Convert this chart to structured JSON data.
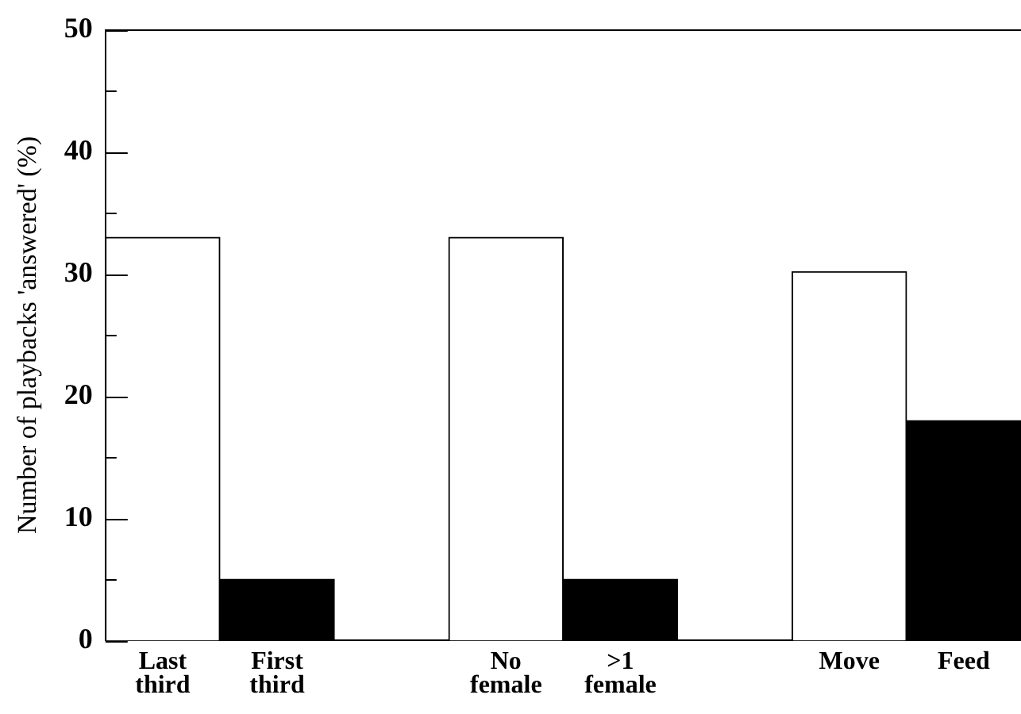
{
  "chart_data": {
    "type": "bar",
    "ylabel": "Number of playbacks 'answered' (%)",
    "categories": [
      "Last third",
      "First third",
      null,
      "No female",
      ">1 female",
      null,
      "Move",
      "Feed"
    ],
    "values": [
      33,
      5,
      null,
      33,
      5,
      null,
      30.2,
      18
    ],
    "colors": [
      "#ffffff",
      "#000000",
      "#ffffff",
      "#ffffff",
      "#000000",
      "#ffffff",
      "#ffffff",
      "#000000"
    ],
    "ylim": [
      0,
      50
    ],
    "yticks": [
      0,
      {
        "value": 5,
        "label": null
      },
      10,
      {
        "value": 15,
        "label": null
      },
      20,
      {
        "value": 25,
        "label": null
      },
      30,
      {
        "value": 35,
        "label": null
      },
      40,
      {
        "value": 45,
        "label": null
      },
      50
    ],
    "grid": false,
    "legend": false
  }
}
